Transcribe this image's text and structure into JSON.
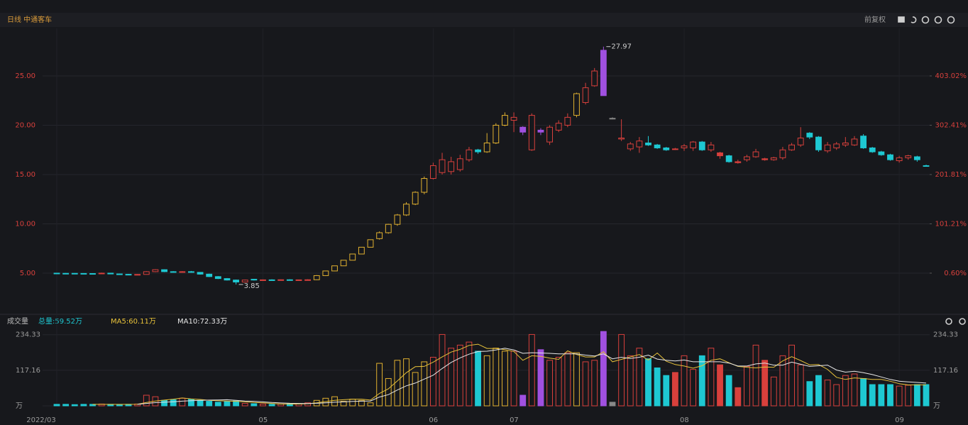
{
  "chart_data": {
    "type": "candlestick",
    "title": "日线 中通客车",
    "adjust": "前复权",
    "categories": [
      "2022/03",
      null,
      null,
      null,
      null,
      null,
      null,
      null,
      null,
      null,
      null,
      null,
      null,
      null,
      null,
      null,
      null,
      null,
      null,
      null,
      null,
      null,
      null,
      "05",
      null,
      null,
      null,
      null,
      null,
      null,
      null,
      null,
      null,
      null,
      null,
      null,
      null,
      null,
      null,
      null,
      null,
      null,
      "06",
      null,
      null,
      null,
      null,
      null,
      null,
      null,
      null,
      "07",
      null,
      null,
      null,
      null,
      null,
      null,
      null,
      null,
      null,
      null,
      null,
      null,
      null,
      null,
      null,
      null,
      null,
      null,
      "08",
      null,
      null,
      null,
      null,
      null,
      null,
      null,
      null,
      null,
      null,
      null,
      null,
      null,
      null,
      null,
      null,
      null,
      null,
      null,
      null,
      null,
      null,
      null,
      "09",
      null,
      null,
      null
    ],
    "open": [
      5.0,
      4.98,
      4.98,
      4.97,
      4.96,
      4.95,
      5.0,
      4.92,
      4.88,
      4.85,
      4.87,
      5.15,
      5.35,
      5.15,
      5.1,
      5.15,
      5.08,
      4.9,
      4.65,
      4.45,
      4.3,
      4.1,
      4.38,
      4.3,
      4.32,
      4.3,
      4.33,
      4.3,
      4.32,
      4.33,
      4.75,
      5.22,
      5.74,
      6.31,
      6.94,
      7.63,
      8.5,
      9.1,
      9.95,
      10.9,
      12.0,
      13.2,
      14.6,
      15.2,
      15.3,
      15.5,
      16.5,
      17.5,
      17.3,
      18.2,
      20.0,
      20.5,
      19.8,
      17.5,
      19.5,
      18.3,
      19.5,
      20.0,
      21.0,
      22.3,
      24.0,
      27.6,
      20.7,
      18.6,
      17.6,
      17.8,
      18.2,
      18.0,
      17.7,
      17.6,
      17.7,
      17.7,
      18.3,
      17.5,
      17.2,
      16.9,
      16.3,
      16.5,
      16.8,
      16.6,
      16.5,
      16.7,
      17.5,
      18.0,
      19.2,
      18.8,
      17.4,
      17.7,
      18.0,
      18.0,
      18.9,
      17.7,
      17.3,
      17.0,
      16.4,
      16.7,
      16.8,
      15.9
    ],
    "high": [
      5.02,
      5.01,
      5.0,
      5.0,
      4.99,
      5.05,
      5.02,
      4.95,
      4.92,
      4.9,
      5.2,
      5.4,
      5.38,
      5.2,
      5.2,
      5.22,
      5.1,
      4.95,
      4.7,
      4.5,
      4.35,
      4.35,
      4.42,
      4.36,
      4.38,
      4.36,
      4.38,
      4.35,
      4.38,
      4.8,
      5.25,
      5.75,
      6.32,
      6.94,
      7.63,
      8.39,
      9.23,
      10.0,
      11.0,
      12.2,
      13.3,
      14.8,
      16.2,
      17.2,
      16.8,
      17.0,
      17.8,
      17.6,
      19.2,
      20.2,
      21.3,
      21.3,
      19.9,
      21.2,
      19.7,
      20.0,
      20.5,
      21.2,
      23.3,
      24.3,
      25.8,
      27.97,
      20.8,
      20.6,
      18.3,
      18.8,
      18.9,
      18.1,
      17.8,
      17.7,
      18.1,
      18.4,
      18.4,
      18.3,
      17.3,
      17.0,
      16.5,
      17.0,
      17.6,
      16.7,
      16.8,
      17.8,
      18.2,
      19.8,
      19.3,
      18.9,
      18.3,
      18.3,
      18.8,
      18.9,
      19.1,
      17.8,
      17.4,
      17.1,
      16.9,
      17.0,
      16.9,
      16.0
    ],
    "low": [
      4.95,
      4.95,
      4.95,
      4.94,
      4.93,
      4.93,
      4.9,
      4.85,
      4.8,
      4.8,
      4.85,
      5.1,
      5.1,
      5.05,
      5.05,
      5.05,
      4.85,
      4.6,
      4.4,
      4.25,
      3.85,
      4.05,
      4.25,
      4.25,
      4.26,
      4.25,
      4.27,
      4.26,
      4.28,
      4.3,
      4.72,
      5.2,
      5.74,
      6.31,
      6.94,
      7.63,
      8.4,
      9.0,
      9.8,
      10.8,
      11.9,
      13.0,
      14.5,
      15.0,
      15.0,
      15.3,
      16.3,
      17.1,
      17.2,
      18.1,
      19.9,
      19.3,
      19.0,
      17.4,
      19.0,
      18.0,
      19.3,
      19.8,
      20.8,
      22.1,
      23.9,
      23.0,
      20.6,
      18.4,
      17.4,
      17.2,
      17.9,
      17.6,
      17.4,
      17.5,
      17.4,
      17.4,
      17.4,
      17.3,
      16.6,
      16.2,
      16.1,
      16.3,
      16.7,
      16.4,
      16.4,
      16.5,
      17.4,
      17.8,
      18.6,
      17.3,
      17.2,
      17.5,
      17.8,
      17.9,
      17.6,
      17.2,
      16.9,
      16.4,
      16.2,
      16.5,
      16.3,
      15.8
    ],
    "close": [
      4.98,
      4.98,
      4.97,
      4.96,
      4.95,
      5.0,
      4.92,
      4.88,
      4.85,
      4.87,
      5.15,
      5.35,
      5.15,
      5.1,
      5.15,
      5.08,
      4.9,
      4.65,
      4.45,
      4.3,
      4.1,
      4.3,
      4.3,
      4.32,
      4.3,
      4.33,
      4.3,
      4.32,
      4.33,
      4.75,
      5.22,
      5.74,
      6.31,
      6.94,
      7.63,
      8.39,
      9.1,
      9.95,
      10.9,
      12.0,
      13.2,
      14.6,
      15.9,
      16.5,
      16.3,
      16.6,
      17.5,
      17.3,
      18.2,
      20.0,
      21.0,
      20.8,
      19.3,
      21.0,
      19.3,
      19.8,
      20.2,
      20.8,
      23.2,
      23.8,
      25.5,
      23.0,
      20.7,
      18.7,
      18.1,
      18.4,
      18.0,
      17.7,
      17.5,
      17.6,
      17.9,
      18.3,
      17.5,
      18.0,
      16.9,
      16.3,
      16.2,
      16.8,
      17.3,
      16.5,
      16.7,
      17.5,
      18.0,
      18.7,
      18.8,
      17.5,
      18.0,
      18.1,
      18.2,
      18.6,
      17.7,
      17.3,
      17.0,
      16.5,
      16.7,
      16.9,
      16.5,
      15.85
    ],
    "colors": [
      "#1ec8d2",
      "#1ec8d2",
      "#1ec8d2",
      "#1ec8d2",
      "#1ec8d2",
      "#d8403c",
      "#1ec8d2",
      "#1ec8d2",
      "#1ec8d2",
      "#d8403c",
      "#d8403c",
      "#d8403c",
      "#1ec8d2",
      "#1ec8d2",
      "#d8403c",
      "#1ec8d2",
      "#1ec8d2",
      "#1ec8d2",
      "#1ec8d2",
      "#1ec8d2",
      "#1ec8d2",
      "#d8403c",
      "#1ec8d2",
      "#d8403c",
      "#1ec8d2",
      "#d8403c",
      "#1ec8d2",
      "#d8403c",
      "#d8403c",
      "#e0b030",
      "#e0b030",
      "#e0b030",
      "#e0b030",
      "#e0b030",
      "#e0b030",
      "#e0b030",
      "#e0b030",
      "#e0b030",
      "#e0b030",
      "#e0b030",
      "#e0b030",
      "#e0b030",
      "#d8403c",
      "#d8403c",
      "#d8403c",
      "#d8403c",
      "#d8403c",
      "#1ec8d2",
      "#e0b030",
      "#e0b030",
      "#e0b030",
      "#d8403c",
      "#a050e0",
      "#d8403c",
      "#a050e0",
      "#d8403c",
      "#d8403c",
      "#d8403c",
      "#e0b030",
      "#d8403c",
      "#d8403c",
      "#a050e0",
      "#888888",
      "#d8403c",
      "#d8403c",
      "#d8403c",
      "#1ec8d2",
      "#1ec8d2",
      "#1ec8d2",
      "#d8403c",
      "#d8403c",
      "#d8403c",
      "#1ec8d2",
      "#d8403c",
      "#d8403c",
      "#1ec8d2",
      "#d8403c",
      "#d8403c",
      "#d8403c",
      "#d8403c",
      "#d8403c",
      "#d8403c",
      "#d8403c",
      "#d8403c",
      "#1ec8d2",
      "#1ec8d2",
      "#d8403c",
      "#d8403c",
      "#d8403c",
      "#d8403c",
      "#1ec8d2",
      "#1ec8d2",
      "#1ec8d2",
      "#1ec8d2",
      "#d8403c",
      "#d8403c",
      "#1ec8d2",
      "#1ec8d2"
    ],
    "ylim": [
      1.4,
      29.82
    ],
    "yticks": [
      {
        "value": 5,
        "label": "5.00"
      },
      {
        "value": 10,
        "label": "10.00"
      },
      {
        "value": 15,
        "label": "15.00"
      },
      {
        "value": 20,
        "label": "20.00"
      },
      {
        "value": 25,
        "label": "25.00"
      }
    ],
    "y2lim": [
      -71.83,
      500.0
    ],
    "y2ticks": [
      {
        "value": 0.6,
        "label": "0.60%"
      },
      {
        "value": 101.21,
        "label": "101.21%"
      },
      {
        "value": 201.81,
        "label": "201.81%"
      },
      {
        "value": 302.41,
        "label": "302.41%"
      },
      {
        "value": 403.02,
        "label": "403.02%"
      }
    ],
    "grid": true,
    "volume_panel": {
      "title": "成交量",
      "total_label": "总量:59.52万",
      "ylim": [
        0,
        250
      ],
      "yticks": [
        {
          "value": 0,
          "label": "万"
        },
        117.16,
        234.33
      ],
      "values": [
        5,
        5,
        4,
        5,
        5,
        6,
        5,
        4,
        5,
        6,
        35,
        30,
        18,
        20,
        25,
        22,
        18,
        15,
        12,
        14,
        16,
        8,
        7,
        6,
        5,
        6,
        8,
        7,
        10,
        18,
        25,
        30,
        15,
        22,
        18,
        10,
        140,
        90,
        150,
        155,
        110,
        145,
        160,
        235,
        190,
        200,
        210,
        180,
        165,
        190,
        180,
        180,
        35,
        235,
        185,
        150,
        160,
        175,
        175,
        145,
        150,
        245,
        12,
        235,
        165,
        190,
        155,
        125,
        100,
        110,
        165,
        120,
        165,
        190,
        135,
        100,
        60,
        130,
        200,
        150,
        95,
        165,
        200,
        135,
        80,
        100,
        85,
        70,
        100,
        105,
        90,
        70,
        70,
        70,
        65,
        68,
        70,
        70
      ],
      "series": [
        {
          "name": "MA5:60.11万",
          "color": "#e8c23a",
          "values": [
            null,
            null,
            null,
            null,
            5,
            5,
            5,
            5,
            5,
            5.2,
            11,
            16,
            19,
            22,
            26,
            23,
            21,
            18,
            17,
            16,
            15,
            13,
            11,
            10,
            8,
            6,
            6,
            6,
            7,
            10,
            14,
            18,
            20,
            22,
            22,
            19,
            41,
            56,
            82,
            109,
            129,
            130,
            144,
            161,
            177,
            186,
            199,
            203,
            189,
            189,
            185,
            179,
            150,
            165,
            163,
            157,
            153,
            181,
            169,
            161,
            161,
            178,
            145,
            153,
            161,
            169,
            151,
            174,
            147,
            136,
            131,
            124,
            132,
            150,
            155,
            142,
            130,
            127,
            125,
            128,
            127,
            148,
            162,
            149,
            135,
            136,
            120,
            94,
            87,
            92,
            90,
            87,
            87,
            81,
            73,
            69,
            69,
            69
          ]
        },
        {
          "name": "MA10:72.33万",
          "color": "#e8e8e8",
          "values": [
            null,
            null,
            null,
            null,
            null,
            null,
            null,
            null,
            null,
            5,
            8,
            10.5,
            12,
            13.5,
            15.5,
            17,
            18,
            19,
            19.5,
            20,
            18,
            16,
            15,
            13,
            11,
            9.5,
            8.5,
            8,
            7.5,
            8.5,
            10,
            12,
            13,
            14.5,
            15.5,
            16,
            29,
            37,
            52,
            66,
            75,
            88,
            101,
            123,
            143,
            158,
            170,
            179,
            180,
            184,
            190,
            184,
            173,
            175,
            174,
            173,
            171,
            171,
            171,
            167,
            164,
            171,
            155,
            160,
            156,
            160,
            167,
            154,
            150,
            148,
            151,
            145,
            145,
            145,
            145,
            141,
            131,
            131,
            138,
            141,
            134,
            134,
            144,
            137,
            130,
            132,
            134,
            118,
            111,
            114,
            109,
            103,
            95,
            87,
            81,
            79,
            77,
            75
          ]
        }
      ]
    }
  }
}
